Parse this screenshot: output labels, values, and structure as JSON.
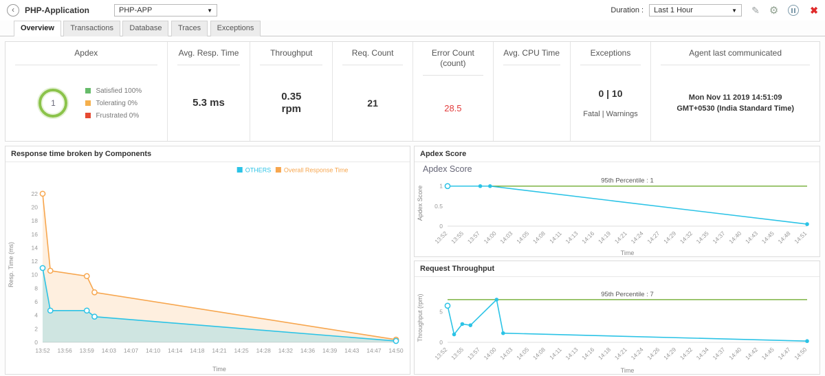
{
  "header": {
    "back_glyph": "‹",
    "app_label": "PHP-Application",
    "app_select": "PHP-APP",
    "caret": "▼",
    "duration_label": "Duration :",
    "duration_select": "Last 1 Hour"
  },
  "tabs": [
    "Overview",
    "Transactions",
    "Database",
    "Traces",
    "Exceptions"
  ],
  "active_tab": "Overview",
  "colors": {
    "series_cyan": "#2bc3e6",
    "series_orange": "#f7a64e",
    "percentile_green": "#7cb342",
    "error_red": "#e23b3b",
    "apdex_ring_green": "#8bc34a"
  },
  "metrics": {
    "apdex": {
      "title": "Apdex",
      "value": "1",
      "legend": [
        {
          "label": "Satisfied 100%",
          "color": "#66bb6a"
        },
        {
          "label": "Tolerating 0%",
          "color": "#f5b04d"
        },
        {
          "label": "Frustrated 0%",
          "color": "#e64a33"
        }
      ]
    },
    "avg_resp_time": {
      "title": "Avg. Resp. Time",
      "value": "5.3 ms"
    },
    "throughput": {
      "title": "Throughput",
      "value": "0.35",
      "unit": "rpm"
    },
    "req_count": {
      "title": "Req. Count",
      "value": "21"
    },
    "error_count": {
      "title": "Error Count (count)",
      "value": "28.5"
    },
    "avg_cpu_time": {
      "title": "Avg. CPU Time",
      "value": ""
    },
    "exceptions": {
      "title": "Exceptions",
      "value": "0 | 10",
      "sub": "Fatal | Warnings"
    },
    "agent": {
      "title": "Agent last communicated",
      "line1": "Mon Nov 11 2019 14:51:09",
      "line2": "GMT+0530 (India Standard Time)"
    }
  },
  "chart_data": [
    {
      "id": "components-chart",
      "type": "area",
      "title": "Response time broken by Components",
      "xlabel": "Time",
      "ylabel": "Resp. Time (ms)",
      "x_ticks": [
        "13:52",
        "13:56",
        "13:59",
        "14:03",
        "14:07",
        "14:10",
        "14:14",
        "14:18",
        "14:21",
        "14:25",
        "14:28",
        "14:32",
        "14:36",
        "14:39",
        "14:43",
        "14:47",
        "14:50"
      ],
      "rotate_x": false,
      "y_min": 0,
      "y_max": 23,
      "y_ticks": [
        0,
        2,
        4,
        6,
        8,
        10,
        12,
        14,
        16,
        18,
        20,
        22
      ],
      "pad": [
        36,
        20,
        46,
        54
      ],
      "legend": [
        {
          "label": "OTHERS",
          "color": "#2bc3e6"
        },
        {
          "label": "Overall Response Time",
          "color": "#f7a64e"
        }
      ],
      "series": [
        {
          "name": "Overall Response Time",
          "color": "#f7a64e",
          "fill": "rgba(247,166,78,0.18)",
          "points": [
            [
              0,
              22,
              1
            ],
            [
              0.35,
              10.6,
              1
            ],
            [
              2,
              9.8,
              1
            ],
            [
              2.35,
              7.4,
              1
            ],
            [
              16,
              0.4,
              1
            ]
          ]
        },
        {
          "name": "OTHERS",
          "color": "#2bc3e6",
          "fill": "rgba(43,195,230,0.22)",
          "points": [
            [
              0,
              11,
              1
            ],
            [
              0.35,
              4.7,
              1
            ],
            [
              2,
              4.7,
              1
            ],
            [
              2.35,
              3.8,
              1
            ],
            [
              16,
              0.2,
              1
            ]
          ]
        }
      ]
    },
    {
      "id": "apdex-chart",
      "type": "line",
      "panel_title": "Apdex Score",
      "inner_title": "Apdex Score",
      "xlabel": "Time",
      "ylabel": "Apdex Score",
      "x_ticks": [
        "13:52",
        "13:55",
        "13:57",
        "14:00",
        "14:03",
        "14:05",
        "14:08",
        "14:11",
        "14:13",
        "14:16",
        "14:19",
        "14:21",
        "14:24",
        "14:27",
        "14:29",
        "14:32",
        "14:35",
        "14:37",
        "14:40",
        "14:43",
        "14:45",
        "14:48",
        "14:51"
      ],
      "rotate_x": true,
      "y_min": 0,
      "y_max": 1.15,
      "y_ticks": [
        0,
        0.5,
        1
      ],
      "pad": [
        26,
        18,
        46,
        48
      ],
      "percentile": {
        "value": 1,
        "label": "95th Percentile : 1",
        "color": "#7cb342"
      },
      "series": [
        {
          "name": "Apdex Score",
          "color": "#2bc3e6",
          "points": [
            [
              0,
              1,
              1
            ],
            [
              2,
              1,
              2
            ],
            [
              2.6,
              1,
              2
            ],
            [
              22,
              0.05,
              2
            ]
          ]
        }
      ]
    },
    {
      "id": "throughput-chart",
      "type": "line",
      "panel_title": "Request Throughput",
      "xlabel": "Time",
      "ylabel": "Throughput (rpm)",
      "x_ticks": [
        "13:52",
        "13:55",
        "13:57",
        "14:00",
        "14:03",
        "14:05",
        "14:08",
        "14:11",
        "14:13",
        "14:16",
        "14:18",
        "14:21",
        "14:24",
        "14:26",
        "14:29",
        "14:32",
        "14:34",
        "14:37",
        "14:40",
        "14:42",
        "14:45",
        "14:47",
        "14:50"
      ],
      "rotate_x": true,
      "y_min": 0,
      "y_max": 8,
      "y_ticks": [
        0,
        5
      ],
      "pad": [
        24,
        18,
        48,
        48
      ],
      "percentile": {
        "value": 7,
        "label": "95th Percentile : 7",
        "color": "#7cb342"
      },
      "series": [
        {
          "name": "Request Throughput",
          "color": "#2bc3e6",
          "points": [
            [
              0,
              6,
              1
            ],
            [
              0.4,
              1.3,
              2
            ],
            [
              0.9,
              3,
              2
            ],
            [
              1.4,
              2.8,
              2
            ],
            [
              3,
              7,
              2
            ],
            [
              3.4,
              1.5,
              2
            ],
            [
              22,
              0.2,
              2
            ]
          ]
        }
      ]
    }
  ]
}
